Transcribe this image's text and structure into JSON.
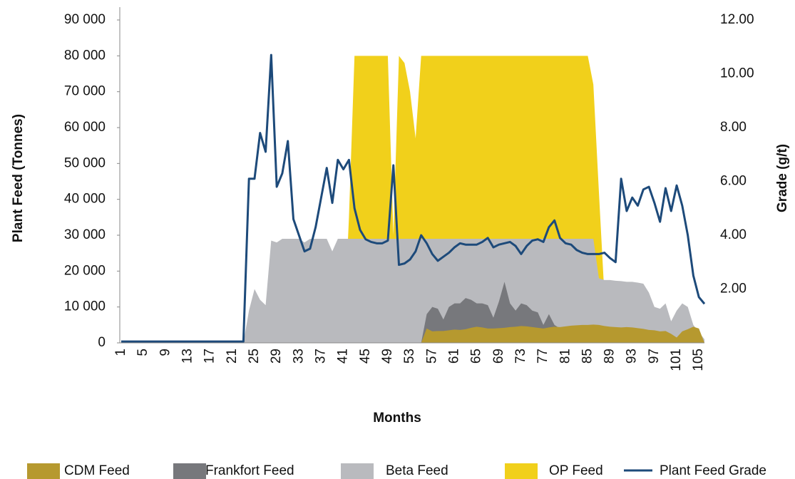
{
  "chart_data": {
    "type": "area",
    "xlabel": "Months",
    "ylabel": "Plant Feed (Tonnes)",
    "y2label": "Grade (g/t)",
    "categories": [
      1,
      null,
      null,
      null,
      5,
      null,
      null,
      null,
      9,
      null,
      null,
      null,
      13,
      null,
      null,
      null,
      17,
      null,
      null,
      null,
      21,
      null,
      null,
      null,
      25,
      null,
      null,
      null,
      29,
      null,
      null,
      null,
      33,
      null,
      null,
      null,
      37,
      null,
      null,
      null,
      41,
      null,
      null,
      null,
      45,
      null,
      null,
      null,
      49,
      null,
      null,
      null,
      53,
      null,
      null,
      null,
      57,
      null,
      null,
      null,
      61,
      null,
      null,
      null,
      65,
      null,
      null,
      null,
      69,
      null,
      null,
      null,
      73,
      null,
      null,
      null,
      77,
      null,
      null,
      null,
      81,
      null,
      null,
      null,
      85,
      null,
      null,
      null,
      89,
      null,
      null,
      null,
      93,
      null,
      null,
      null,
      97,
      null,
      null,
      null,
      101,
      null,
      null,
      null,
      105,
      null
    ],
    "ylim": [
      0,
      90000
    ],
    "yticks": [
      0,
      {
        "value": 10000,
        "label": "10 000"
      },
      {
        "value": 20000,
        "label": "20 000"
      },
      {
        "value": 30000,
        "label": "30 000"
      },
      {
        "value": 40000,
        "label": "40 000"
      },
      {
        "value": 50000,
        "label": "50 000"
      },
      {
        "value": 60000,
        "label": "60 000"
      },
      {
        "value": 70000,
        "label": "70 000"
      },
      {
        "value": 80000,
        "label": "80 000"
      },
      {
        "value": 90000,
        "label": "90 000"
      }
    ],
    "y2lim": [
      0,
      12
    ],
    "y2ticks": [
      {
        "value": 2,
        "label": "2.00"
      },
      {
        "value": 4,
        "label": "4.00"
      },
      {
        "value": 6,
        "label": "6.00"
      },
      {
        "value": 8,
        "label": "8.00"
      },
      {
        "value": 10,
        "label": "10.00"
      },
      {
        "value": 12,
        "label": "12.00"
      }
    ],
    "series": [
      {
        "name": "CDM Feed",
        "type": "area",
        "color": "#b6992f",
        "values": [
          0,
          0,
          0,
          0,
          0,
          0,
          0,
          0,
          0,
          0,
          0,
          0,
          0,
          0,
          0,
          0,
          0,
          0,
          0,
          0,
          0,
          0,
          0,
          0,
          0,
          0,
          0,
          0,
          0,
          0,
          0,
          0,
          0,
          0,
          0,
          0,
          0,
          0,
          0,
          0,
          0,
          0,
          0,
          0,
          0,
          0,
          0,
          0,
          0,
          0,
          0,
          0,
          0,
          0,
          0,
          4000,
          3200,
          3300,
          3300,
          3500,
          3700,
          3600,
          3800,
          4200,
          4500,
          4300,
          4000,
          4000,
          4100,
          4200,
          4400,
          4500,
          4700,
          4600,
          4400,
          4200,
          4000,
          4300,
          4500,
          4400,
          4600,
          4800,
          4900,
          5000,
          5000,
          5100,
          5000,
          4700,
          4500,
          4400,
          4300,
          4400,
          4300,
          4100,
          3900,
          3600,
          3500,
          3200,
          3300,
          2500,
          1500,
          3200,
          3800,
          4500,
          4000,
          0
        ]
      },
      {
        "name": "Frankfort Feed",
        "type": "area",
        "color": "#77787c",
        "values": [
          0,
          0,
          0,
          0,
          0,
          0,
          0,
          0,
          0,
          0,
          0,
          0,
          0,
          0,
          0,
          0,
          0,
          0,
          0,
          0,
          0,
          0,
          0,
          0,
          0,
          0,
          0,
          0,
          0,
          0,
          0,
          0,
          0,
          0,
          0,
          0,
          0,
          0,
          0,
          0,
          0,
          0,
          0,
          0,
          0,
          0,
          0,
          0,
          0,
          0,
          0,
          0,
          0,
          0,
          0,
          8000,
          10000,
          9500,
          6500,
          10000,
          11000,
          11000,
          12500,
          12000,
          11000,
          11000,
          10500,
          7000,
          11500,
          17000,
          11000,
          9000,
          11000,
          10500,
          9000,
          8500,
          5000,
          8000,
          5000,
          4000,
          0,
          0,
          0,
          0,
          0,
          0,
          0,
          0,
          0,
          0,
          0,
          0,
          0,
          0,
          0,
          0,
          0,
          0,
          0,
          0,
          0,
          0,
          0,
          0,
          0,
          0
        ]
      },
      {
        "name": "Beta Feed",
        "type": "area",
        "color": "#b9babe",
        "values": [
          0,
          0,
          0,
          0,
          0,
          0,
          0,
          0,
          0,
          0,
          0,
          0,
          0,
          0,
          0,
          0,
          0,
          0,
          0,
          0,
          0,
          0,
          0,
          9000,
          15000,
          12000,
          10500,
          28500,
          28000,
          29000,
          29000,
          29000,
          29000,
          28000,
          29000,
          29000,
          29000,
          29000,
          25500,
          29000,
          29000,
          29000,
          29000,
          29000,
          29000,
          29000,
          29000,
          29000,
          29000,
          29000,
          29000,
          29000,
          29000,
          29000,
          29000,
          29000,
          29000,
          29000,
          29000,
          29000,
          29000,
          29000,
          29000,
          29000,
          29000,
          29000,
          29000,
          29000,
          29000,
          29000,
          29000,
          29000,
          29000,
          29000,
          29000,
          29000,
          29000,
          29000,
          29000,
          29000,
          29000,
          29000,
          29000,
          29000,
          29000,
          29000,
          18000,
          17500,
          17500,
          17300,
          17200,
          17000,
          17000,
          16800,
          16500,
          14000,
          10000,
          9500,
          11000,
          6000,
          9000,
          11000,
          10000,
          5000,
          3000,
          1000
        ]
      },
      {
        "name": "OP Feed",
        "type": "area",
        "color": "#f1d01b",
        "values": [
          0,
          0,
          0,
          0,
          0,
          0,
          0,
          0,
          0,
          0,
          0,
          0,
          0,
          0,
          0,
          0,
          0,
          0,
          0,
          0,
          0,
          0,
          0,
          0,
          0,
          0,
          0,
          0,
          0,
          0,
          0,
          0,
          0,
          0,
          0,
          0,
          0,
          0,
          0,
          0,
          0,
          35000,
          80000,
          80000,
          80000,
          80000,
          80000,
          80000,
          80000,
          30000,
          80000,
          78000,
          70000,
          57000,
          80000,
          80000,
          80000,
          80000,
          80000,
          80000,
          80000,
          80000,
          80000,
          80000,
          80000,
          80000,
          80000,
          80000,
          80000,
          80000,
          80000,
          80000,
          80000,
          80000,
          80000,
          80000,
          80000,
          80000,
          80000,
          80000,
          80000,
          80000,
          80000,
          80000,
          80000,
          72000,
          42000,
          13000,
          0,
          0,
          0,
          0,
          0,
          0,
          0,
          0,
          0,
          0,
          0,
          0,
          0,
          0,
          0,
          0,
          0,
          0
        ]
      },
      {
        "name": "Plant Feed Grade",
        "type": "line",
        "axis": "y2",
        "color": "#1d4a7a",
        "values": [
          0.05,
          0.05,
          0.05,
          0.05,
          0.05,
          0.05,
          0.05,
          0.05,
          0.05,
          0.05,
          0.05,
          0.05,
          0.05,
          0.05,
          0.05,
          0.05,
          0.05,
          0.05,
          0.05,
          0.05,
          0.05,
          0.05,
          0.05,
          6.1,
          6.1,
          7.8,
          7.1,
          10.7,
          5.8,
          6.3,
          7.5,
          4.6,
          4.0,
          3.4,
          3.5,
          4.3,
          5.4,
          6.5,
          5.2,
          6.8,
          6.45,
          6.8,
          5.0,
          4.2,
          3.85,
          3.75,
          3.7,
          3.7,
          3.8,
          6.6,
          2.9,
          2.95,
          3.1,
          3.4,
          4.0,
          3.7,
          3.3,
          3.05,
          3.2,
          3.35,
          3.55,
          3.7,
          3.65,
          3.65,
          3.65,
          3.75,
          3.9,
          3.55,
          3.65,
          3.7,
          3.75,
          3.6,
          3.3,
          3.6,
          3.8,
          3.85,
          3.75,
          4.3,
          4.55,
          3.9,
          3.7,
          3.65,
          3.45,
          3.35,
          3.3,
          3.3,
          3.3,
          3.35,
          3.15,
          3.0,
          6.1,
          4.9,
          5.4,
          5.1,
          5.7,
          5.8,
          5.2,
          4.5,
          5.75,
          4.9,
          5.85,
          5.1,
          4.0,
          2.5,
          1.7,
          1.45
        ]
      }
    ]
  }
}
